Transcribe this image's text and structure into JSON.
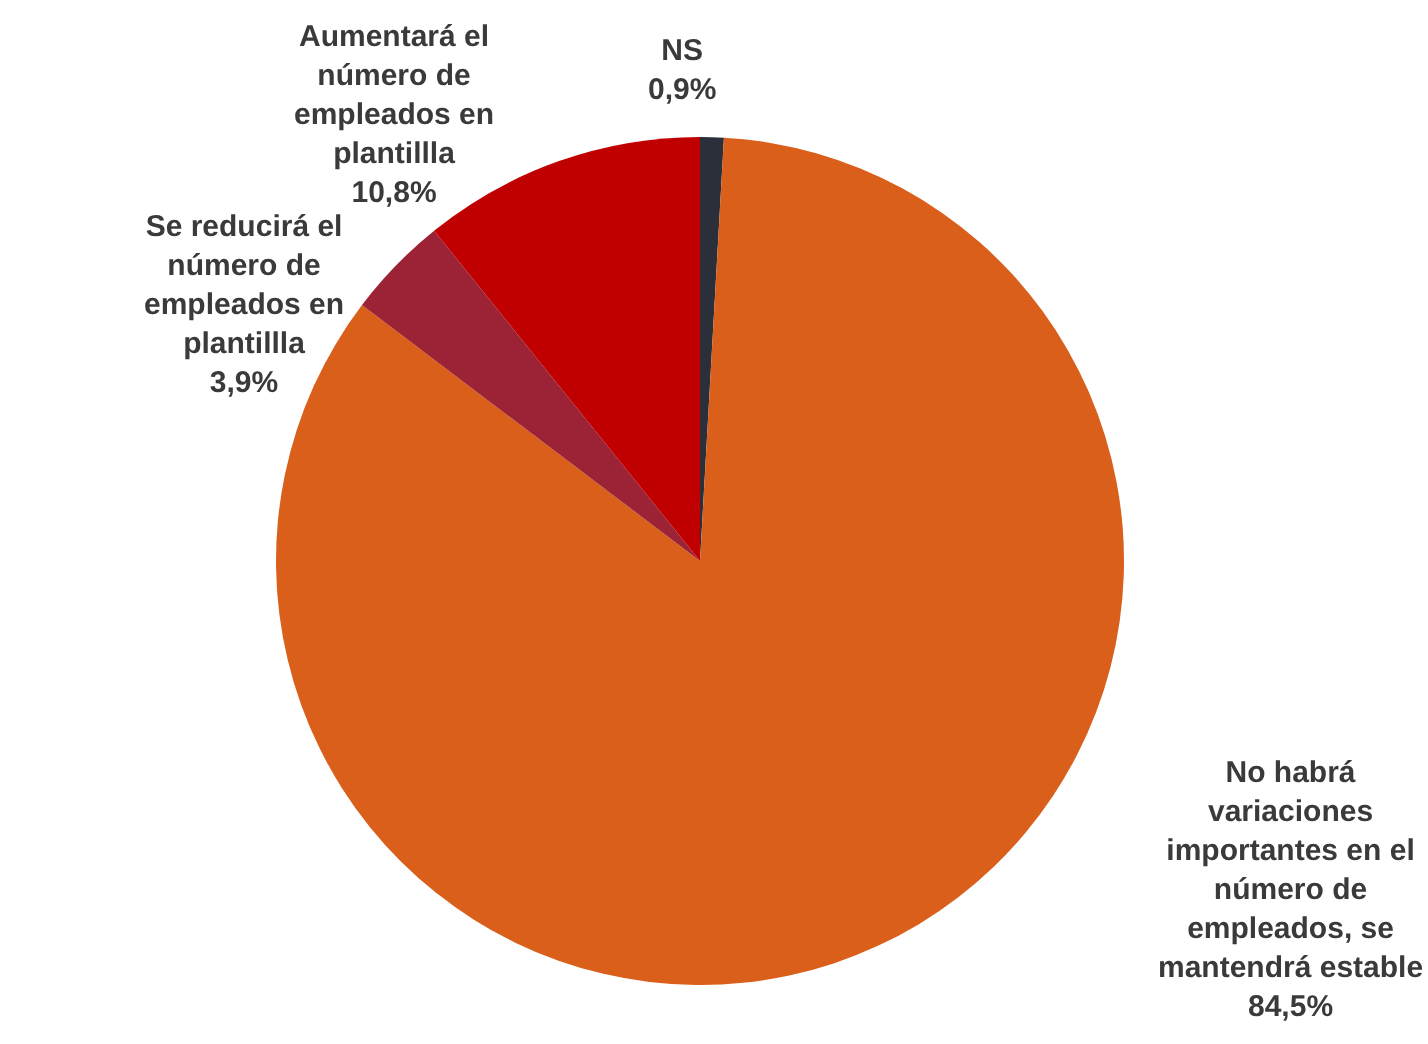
{
  "chart_data": {
    "type": "pie",
    "categories": [
      "NS",
      "No habrá variaciones importantes en el número de empleados, se mantendrá estable",
      "Se reducirá el número de empleados en plantillla",
      "Aumentará el número de empleados en plantillla"
    ],
    "values": [
      0.9,
      84.5,
      3.9,
      10.8
    ],
    "value_labels": [
      "0,9%",
      "84,5%",
      "3,9%",
      "10,8%"
    ],
    "colors": [
      "#2b2f3a",
      "#d95f1a",
      "#9b2335",
      "#c00000"
    ],
    "legend": false
  }
}
